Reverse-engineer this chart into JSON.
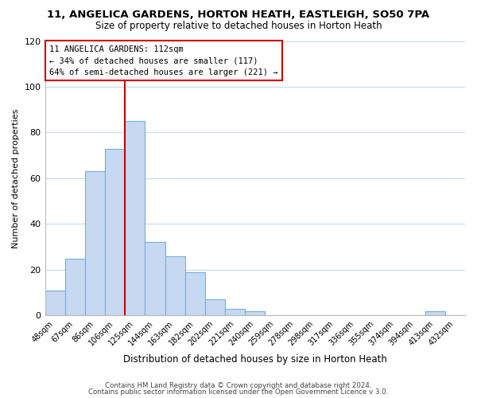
{
  "title": "11, ANGELICA GARDENS, HORTON HEATH, EASTLEIGH, SO50 7PA",
  "subtitle": "Size of property relative to detached houses in Horton Heath",
  "xlabel": "Distribution of detached houses by size in Horton Heath",
  "ylabel": "Number of detached properties",
  "bar_labels": [
    "48sqm",
    "67sqm",
    "86sqm",
    "106sqm",
    "125sqm",
    "144sqm",
    "163sqm",
    "182sqm",
    "202sqm",
    "221sqm",
    "240sqm",
    "259sqm",
    "278sqm",
    "298sqm",
    "317sqm",
    "336sqm",
    "355sqm",
    "374sqm",
    "394sqm",
    "413sqm",
    "432sqm"
  ],
  "bar_values": [
    11,
    25,
    63,
    73,
    85,
    32,
    26,
    19,
    7,
    3,
    2,
    0,
    0,
    0,
    0,
    0,
    0,
    0,
    0,
    2,
    0
  ],
  "bar_color": "#c6d9f1",
  "bar_edge_color": "#7aacda",
  "ylim": [
    0,
    120
  ],
  "yticks": [
    0,
    20,
    40,
    60,
    80,
    100,
    120
  ],
  "vline_x": 3.5,
  "vline_color": "#cc0000",
  "annotation_title": "11 ANGELICA GARDENS: 112sqm",
  "annotation_line1": "← 34% of detached houses are smaller (117)",
  "annotation_line2": "64% of semi-detached houses are larger (221) →",
  "annotation_box_color": "#ffffff",
  "annotation_box_edge": "#cc0000",
  "footer1": "Contains HM Land Registry data © Crown copyright and database right 2024.",
  "footer2": "Contains public sector information licensed under the Open Government Licence v 3.0.",
  "background_color": "#ffffff",
  "grid_color": "#c8d8ec"
}
